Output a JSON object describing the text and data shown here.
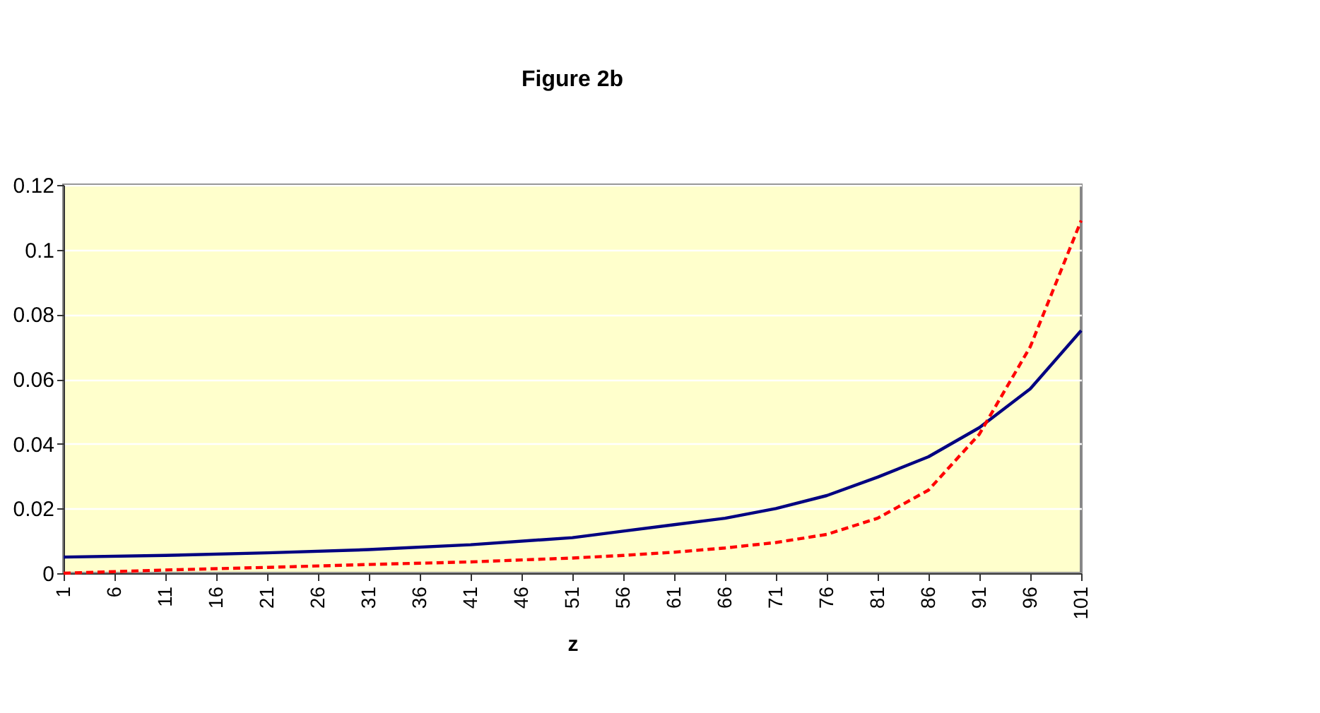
{
  "chart_data": {
    "type": "line",
    "title": "Figure 2b",
    "xlabel": "z",
    "x": [
      1,
      11,
      21,
      31,
      41,
      51,
      56,
      61,
      66,
      71,
      76,
      81,
      86,
      91,
      96,
      101
    ],
    "series": [
      {
        "color": "#000080",
        "line_style": "solid",
        "values": [
          0.005,
          0.0055,
          0.0063,
          0.0073,
          0.0088,
          0.011,
          0.013,
          0.015,
          0.017,
          0.02,
          0.024,
          0.0297,
          0.036,
          0.045,
          0.057,
          0.075
        ]
      },
      {
        "color": "#ff0000",
        "line_style": "dashed",
        "values": [
          0.0,
          0.001,
          0.0018,
          0.0027,
          0.0035,
          0.0047,
          0.0055,
          0.0065,
          0.0078,
          0.0095,
          0.012,
          0.017,
          0.0257,
          0.043,
          0.07,
          0.109
        ]
      }
    ],
    "xlim": [
      1,
      101
    ],
    "xticks": [
      1,
      6,
      11,
      16,
      21,
      26,
      31,
      36,
      41,
      46,
      51,
      56,
      61,
      66,
      71,
      76,
      81,
      86,
      91,
      96,
      101
    ],
    "ylim": [
      0,
      0.12
    ],
    "yticks": [
      0,
      0.02,
      0.04,
      0.06,
      0.08,
      0.1,
      0.12
    ],
    "grid": "y",
    "marker": "none"
  }
}
